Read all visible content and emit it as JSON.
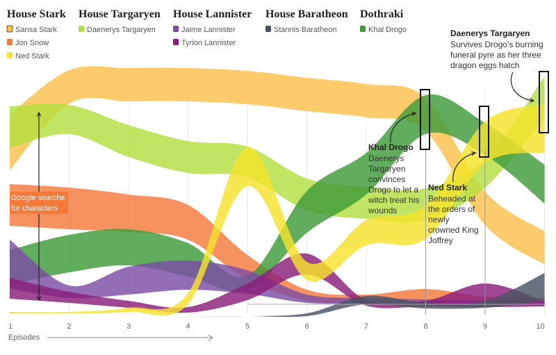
{
  "chart_data": {
    "type": "area",
    "subtype": "streamgraph",
    "xlabel": "Episodes",
    "x": [
      1,
      2,
      3,
      4,
      5,
      6,
      7,
      8,
      9,
      10
    ],
    "ylabel": "Google searches for characters",
    "houses": [
      {
        "name": "House Stark",
        "members": [
          {
            "name": "Sansa Stark",
            "color": "#fbbf4a"
          },
          {
            "name": "Jon Snow",
            "color": "#f47a3c"
          },
          {
            "name": "Ned Stark",
            "color": "#f5e32c"
          }
        ]
      },
      {
        "name": "House Targaryen",
        "members": [
          {
            "name": "Daenerys Targaryen",
            "color": "#b3df3f"
          }
        ]
      },
      {
        "name": "House Lannister",
        "members": [
          {
            "name": "Jaime Lannister",
            "color": "#7b4ea6"
          },
          {
            "name": "Tyrion Lannister",
            "color": "#8a1e7a"
          }
        ]
      },
      {
        "name": "House Baratheon",
        "members": [
          {
            "name": "Stannis Baratheon",
            "color": "#4a5363"
          }
        ]
      },
      {
        "name": "Dothraki",
        "members": [
          {
            "name": "Khal Drogo",
            "color": "#3f9a3a"
          }
        ]
      }
    ],
    "series": [
      {
        "name": "Sansa Stark",
        "color": "#fbbf4a",
        "center": [
          205,
          125,
          122,
          122,
          126,
          136,
          145,
          165,
          300,
          357
        ],
        "width": [
          80,
          48,
          48,
          48,
          48,
          48,
          48,
          48,
          48,
          48
        ]
      },
      {
        "name": "Daenerys Targaryen",
        "color": "#b3df3f",
        "center": [
          183,
          172,
          203,
          226,
          233,
          280,
          292,
          294,
          250,
          140
        ],
        "width": [
          60,
          42,
          46,
          46,
          44,
          46,
          46,
          46,
          40,
          60
        ]
      },
      {
        "name": "Jon Snow",
        "color": "#f47a3c",
        "center": [
          295,
          300,
          307,
          320,
          385,
          425,
          430,
          428,
          432,
          433
        ],
        "width": [
          60,
          60,
          54,
          50,
          36,
          16,
          12,
          24,
          10,
          8
        ]
      },
      {
        "name": "Khal Drogo",
        "color": "#3f9a3a",
        "center": [
          385,
          365,
          356,
          374,
          407,
          305,
          250,
          165,
          200,
          265
        ],
        "width": [
          50,
          54,
          52,
          48,
          20,
          60,
          60,
          56,
          46,
          56
        ]
      },
      {
        "name": "Jaime Lannister",
        "color": "#7b4ea6",
        "center": [
          380,
          420,
          404,
          396,
          406,
          430,
          433,
          434,
          435,
          437
        ],
        "width": [
          70,
          18,
          40,
          42,
          34,
          12,
          8,
          6,
          6,
          6
        ]
      },
      {
        "name": "Tyrion Lannister",
        "color": "#8a1e7a",
        "center": [
          415,
          428,
          438,
          446,
          420,
          380,
          436,
          437,
          425,
          437
        ],
        "width": [
          30,
          16,
          10,
          8,
          24,
          30,
          8,
          8,
          34,
          8
        ]
      },
      {
        "name": "Ned Stark",
        "color": "#f5e32c",
        "center": [
          450,
          450,
          446,
          430,
          240,
          390,
          335,
          320,
          205,
          185
        ],
        "width": [
          2,
          2,
          6,
          16,
          56,
          26,
          36,
          48,
          60,
          70
        ]
      },
      {
        "name": "Stannis Baratheon",
        "color": "#4a5363",
        "center": [
          455,
          455,
          455,
          455,
          455,
          453,
          432,
          440,
          438,
          413
        ],
        "width": [
          0,
          0,
          0,
          0,
          0,
          4,
          12,
          8,
          10,
          40
        ]
      }
    ],
    "annotations": [
      {
        "title": "Khal Drogo",
        "lines": [
          "Daenerys",
          "Targaryen",
          "convinces",
          "Drogo to let a",
          "witch treat his",
          "wounds"
        ],
        "episode": 8
      },
      {
        "title": "Ned Stark",
        "lines": [
          "Beheaded at",
          "the orders of",
          "newly",
          "crowned King",
          "Joffrey"
        ],
        "episode": 9
      },
      {
        "title": "Daenerys Targaryen",
        "lines": [
          "Survives Drogo's burning",
          "funeral pyre as her three",
          "dragon eggs hatch"
        ],
        "episode": 10
      }
    ]
  }
}
